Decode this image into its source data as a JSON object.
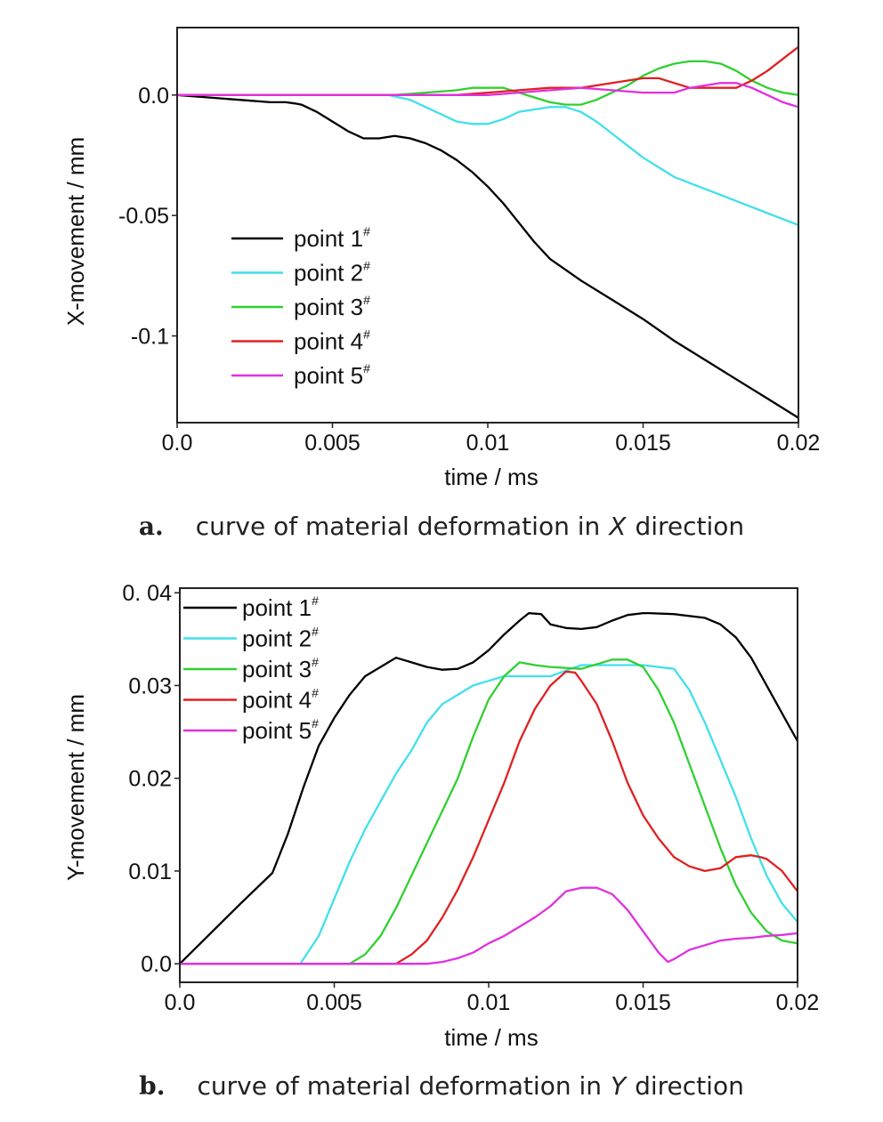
{
  "chart_data": [
    {
      "type": "line",
      "caption_letter": "a.",
      "caption_text": "curve of material deformation in",
      "caption_axis": "X",
      "caption_suffix": "direction",
      "xlabel": "time / ms",
      "ylabel": "X-movement / mm",
      "xlim": [
        0,
        0.02
      ],
      "ylim": [
        -0.136,
        0.028
      ],
      "xticks": [
        0,
        0.005,
        0.01,
        0.015,
        0.02
      ],
      "xtick_labels": [
        "0.0",
        "0.005",
        "0.01",
        "0.015",
        "0.02"
      ],
      "yticks": [
        0,
        -0.05,
        -0.1
      ],
      "ytick_labels": [
        "0.0",
        "-0.05",
        "-0.1"
      ],
      "legend_position": "lower-left",
      "series": [
        {
          "name": "point 1",
          "sup": "#",
          "color": "#000000",
          "x": [
            0,
            0.001,
            0.002,
            0.003,
            0.0035,
            0.0038,
            0.004,
            0.0045,
            0.005,
            0.0055,
            0.006,
            0.0065,
            0.007,
            0.0075,
            0.008,
            0.0085,
            0.009,
            0.0095,
            0.01,
            0.0105,
            0.011,
            0.0115,
            0.012,
            0.013,
            0.014,
            0.015,
            0.016,
            0.017,
            0.018,
            0.019,
            0.02
          ],
          "y": [
            0,
            -0.001,
            -0.002,
            -0.003,
            -0.003,
            -0.0035,
            -0.004,
            -0.007,
            -0.011,
            -0.015,
            -0.018,
            -0.018,
            -0.017,
            -0.018,
            -0.02,
            -0.023,
            -0.027,
            -0.032,
            -0.038,
            -0.045,
            -0.053,
            -0.061,
            -0.068,
            -0.077,
            -0.085,
            -0.093,
            -0.102,
            -0.11,
            -0.118,
            -0.126,
            -0.134
          ]
        },
        {
          "name": "point 2",
          "sup": "#",
          "color": "#40e0ec",
          "x": [
            0,
            0.006,
            0.0068,
            0.0075,
            0.008,
            0.0085,
            0.009,
            0.0095,
            0.01,
            0.0105,
            0.011,
            0.0115,
            0.012,
            0.0125,
            0.013,
            0.0135,
            0.014,
            0.0145,
            0.015,
            0.0155,
            0.016,
            0.017,
            0.018,
            0.019,
            0.02
          ],
          "y": [
            0,
            0,
            0,
            -0.002,
            -0.005,
            -0.008,
            -0.011,
            -0.012,
            -0.012,
            -0.01,
            -0.007,
            -0.006,
            -0.005,
            -0.005,
            -0.007,
            -0.011,
            -0.016,
            -0.021,
            -0.026,
            -0.03,
            -0.034,
            -0.039,
            -0.044,
            -0.049,
            -0.054
          ]
        },
        {
          "name": "point 3",
          "sup": "#",
          "color": "#30d030",
          "x": [
            0,
            0.007,
            0.008,
            0.009,
            0.0095,
            0.01,
            0.0105,
            0.011,
            0.0115,
            0.012,
            0.0125,
            0.013,
            0.0135,
            0.014,
            0.0145,
            0.015,
            0.0155,
            0.016,
            0.0165,
            0.017,
            0.0175,
            0.018,
            0.0185,
            0.019,
            0.0195,
            0.02
          ],
          "y": [
            0,
            0,
            0.001,
            0.002,
            0.003,
            0.003,
            0.003,
            0.001,
            -0.001,
            -0.003,
            -0.004,
            -0.004,
            -0.002,
            0.001,
            0.004,
            0.008,
            0.011,
            0.013,
            0.014,
            0.014,
            0.013,
            0.01,
            0.006,
            0.003,
            0.001,
            0
          ]
        },
        {
          "name": "point 4",
          "sup": "#",
          "color": "#e02020",
          "x": [
            0,
            0.007,
            0.008,
            0.009,
            0.01,
            0.011,
            0.012,
            0.0125,
            0.013,
            0.014,
            0.015,
            0.0155,
            0.016,
            0.0165,
            0.017,
            0.0175,
            0.018,
            0.0185,
            0.019,
            0.0195,
            0.02
          ],
          "y": [
            0,
            0,
            0,
            0,
            0.001,
            0.002,
            0.003,
            0.003,
            0.003,
            0.005,
            0.007,
            0.007,
            0.005,
            0.003,
            0.003,
            0.003,
            0.003,
            0.006,
            0.01,
            0.015,
            0.02
          ]
        },
        {
          "name": "point 5",
          "sup": "#",
          "color": "#e030e0",
          "x": [
            0,
            0.008,
            0.01,
            0.011,
            0.012,
            0.013,
            0.014,
            0.015,
            0.016,
            0.0165,
            0.017,
            0.0175,
            0.018,
            0.0185,
            0.019,
            0.0195,
            0.02
          ],
          "y": [
            0,
            0,
            0,
            0.001,
            0.002,
            0.003,
            0.002,
            0.001,
            0.001,
            0.003,
            0.004,
            0.005,
            0.005,
            0.003,
            0,
            -0.003,
            -0.005
          ]
        }
      ]
    },
    {
      "type": "line",
      "caption_letter": "b.",
      "caption_text": "curve of material deformation in",
      "caption_axis": "Y",
      "caption_suffix": "direction",
      "xlabel": "time / ms",
      "ylabel": "Y-movement / mm",
      "xlim": [
        0,
        0.02
      ],
      "ylim": [
        -0.002,
        0.0405
      ],
      "xticks": [
        0,
        0.005,
        0.01,
        0.015,
        0.02
      ],
      "xtick_labels": [
        "0.0",
        "0.005",
        "0.01",
        "0.015",
        "0.02"
      ],
      "yticks": [
        0,
        0.01,
        0.02,
        0.03,
        0.04
      ],
      "ytick_labels": [
        "0.0",
        "0.01",
        "0.02",
        "0.03",
        "0. 04"
      ],
      "legend_position": "top-left",
      "series": [
        {
          "name": "point 1",
          "sup": "#",
          "color": "#000000",
          "x": [
            0,
            0.001,
            0.002,
            0.003,
            0.0035,
            0.004,
            0.0045,
            0.005,
            0.0055,
            0.006,
            0.0065,
            0.007,
            0.0075,
            0.008,
            0.0085,
            0.009,
            0.0095,
            0.01,
            0.0105,
            0.011,
            0.0113,
            0.0117,
            0.012,
            0.0125,
            0.013,
            0.0135,
            0.014,
            0.0145,
            0.015,
            0.0152,
            0.016,
            0.017,
            0.0175,
            0.018,
            0.0185,
            0.019,
            0.0195,
            0.02
          ],
          "y": [
            0,
            0.0033,
            0.0066,
            0.0098,
            0.014,
            0.019,
            0.0235,
            0.0265,
            0.029,
            0.031,
            0.032,
            0.033,
            0.0325,
            0.032,
            0.0317,
            0.0318,
            0.0325,
            0.0338,
            0.0355,
            0.037,
            0.0378,
            0.0377,
            0.0366,
            0.0362,
            0.0361,
            0.0363,
            0.037,
            0.0376,
            0.0378,
            0.0378,
            0.0377,
            0.0373,
            0.0366,
            0.0352,
            0.033,
            0.03,
            0.027,
            0.024
          ]
        },
        {
          "name": "point 2",
          "sup": "#",
          "color": "#40e0ec",
          "x": [
            0,
            0.0039,
            0.0045,
            0.005,
            0.0055,
            0.006,
            0.0065,
            0.007,
            0.0075,
            0.008,
            0.0085,
            0.009,
            0.0095,
            0.01,
            0.0105,
            0.011,
            0.012,
            0.013,
            0.014,
            0.015,
            0.016,
            0.0165,
            0.017,
            0.0175,
            0.018,
            0.0185,
            0.019,
            0.0195,
            0.02
          ],
          "y": [
            0,
            0,
            0.003,
            0.007,
            0.011,
            0.0145,
            0.0175,
            0.0205,
            0.023,
            0.026,
            0.028,
            0.029,
            0.03,
            0.0305,
            0.031,
            0.031,
            0.031,
            0.0322,
            0.0322,
            0.0322,
            0.0318,
            0.0295,
            0.026,
            0.022,
            0.018,
            0.0135,
            0.0095,
            0.0065,
            0.0045
          ]
        },
        {
          "name": "point 3",
          "sup": "#",
          "color": "#30d030",
          "x": [
            0,
            0.0055,
            0.006,
            0.0065,
            0.007,
            0.0075,
            0.008,
            0.0085,
            0.009,
            0.0095,
            0.01,
            0.0105,
            0.011,
            0.0115,
            0.012,
            0.013,
            0.014,
            0.0145,
            0.015,
            0.0155,
            0.016,
            0.0165,
            0.017,
            0.0175,
            0.018,
            0.0185,
            0.019,
            0.0195,
            0.02
          ],
          "y": [
            0,
            0,
            0.001,
            0.003,
            0.006,
            0.0095,
            0.013,
            0.0165,
            0.02,
            0.0245,
            0.0285,
            0.031,
            0.0325,
            0.0322,
            0.032,
            0.0318,
            0.0328,
            0.0328,
            0.032,
            0.0295,
            0.026,
            0.0215,
            0.017,
            0.0125,
            0.0085,
            0.0055,
            0.0035,
            0.0025,
            0.0022
          ]
        },
        {
          "name": "point 4",
          "sup": "#",
          "color": "#e02020",
          "x": [
            0,
            0.007,
            0.0075,
            0.008,
            0.0085,
            0.009,
            0.0095,
            0.01,
            0.0105,
            0.011,
            0.0115,
            0.012,
            0.0125,
            0.0128,
            0.013,
            0.0135,
            0.014,
            0.0145,
            0.015,
            0.0155,
            0.016,
            0.0165,
            0.017,
            0.0175,
            0.018,
            0.0185,
            0.0188,
            0.019,
            0.0195,
            0.02
          ],
          "y": [
            0,
            0,
            0.001,
            0.0025,
            0.005,
            0.008,
            0.0115,
            0.0155,
            0.0195,
            0.024,
            0.0275,
            0.03,
            0.0315,
            0.0314,
            0.0305,
            0.028,
            0.024,
            0.0195,
            0.016,
            0.0135,
            0.0115,
            0.0105,
            0.01,
            0.0103,
            0.0115,
            0.0117,
            0.0115,
            0.0113,
            0.01,
            0.0078
          ]
        },
        {
          "name": "point 5",
          "sup": "#",
          "color": "#e030e0",
          "x": [
            0,
            0.008,
            0.0085,
            0.009,
            0.0095,
            0.01,
            0.0105,
            0.011,
            0.0115,
            0.012,
            0.0125,
            0.013,
            0.0135,
            0.014,
            0.0145,
            0.015,
            0.0155,
            0.0158,
            0.016,
            0.0165,
            0.017,
            0.0175,
            0.018,
            0.0185,
            0.019,
            0.0195,
            0.02
          ],
          "y": [
            0,
            0,
            0.0002,
            0.0006,
            0.0012,
            0.0022,
            0.003,
            0.004,
            0.005,
            0.0062,
            0.0078,
            0.0082,
            0.0082,
            0.0075,
            0.0058,
            0.0035,
            0.0012,
            0.0002,
            0.0005,
            0.0015,
            0.002,
            0.0025,
            0.0027,
            0.0028,
            0.003,
            0.0031,
            0.0033
          ]
        }
      ]
    }
  ]
}
